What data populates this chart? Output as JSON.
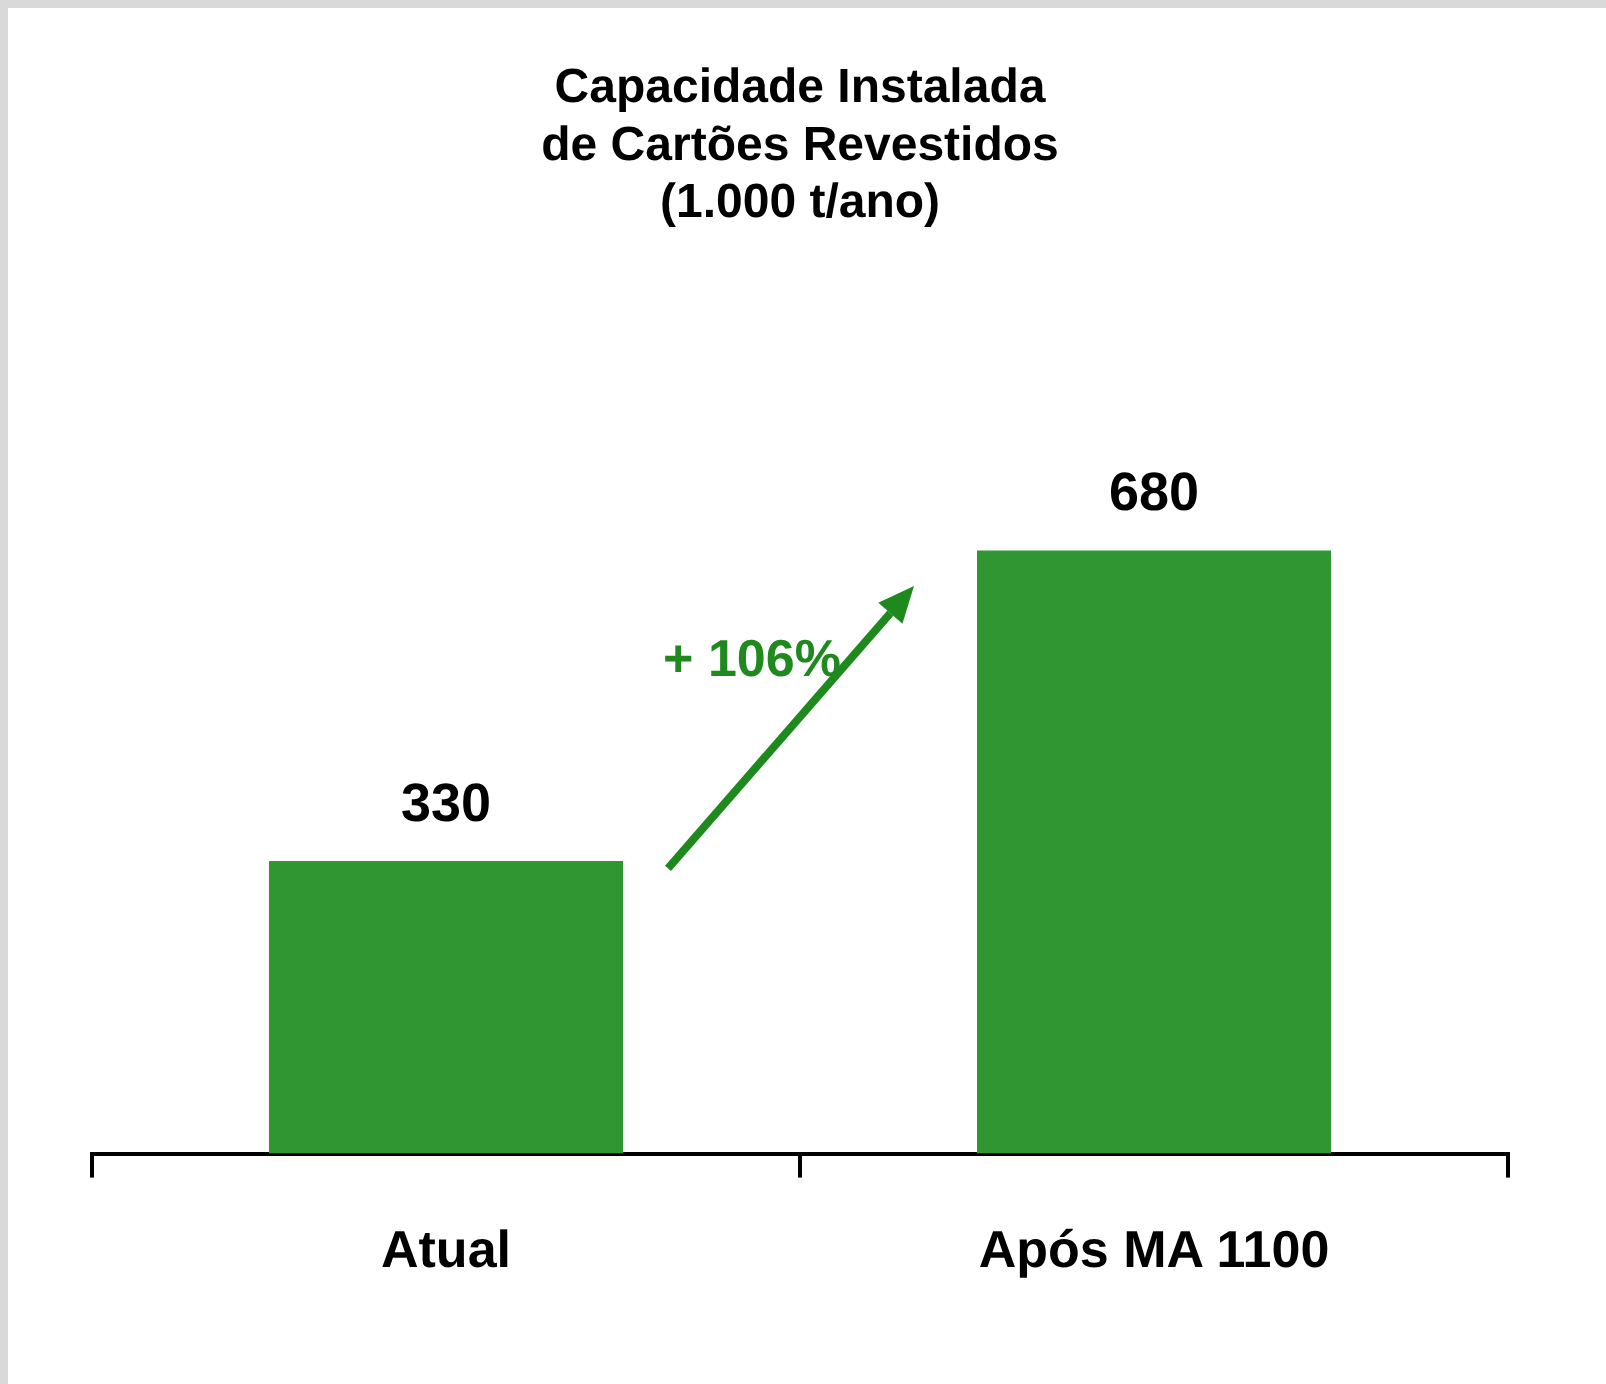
{
  "chart_data": {
    "type": "bar",
    "title": "Capacidade Instalada\nde Cartões Revestidos\n(1.000 t/ano)",
    "categories": [
      "Atual",
      "Após MA 1100"
    ],
    "values": [
      330,
      680
    ],
    "color": "#2f9632",
    "data_labels": true,
    "annotations": [
      "+ 106%"
    ]
  }
}
